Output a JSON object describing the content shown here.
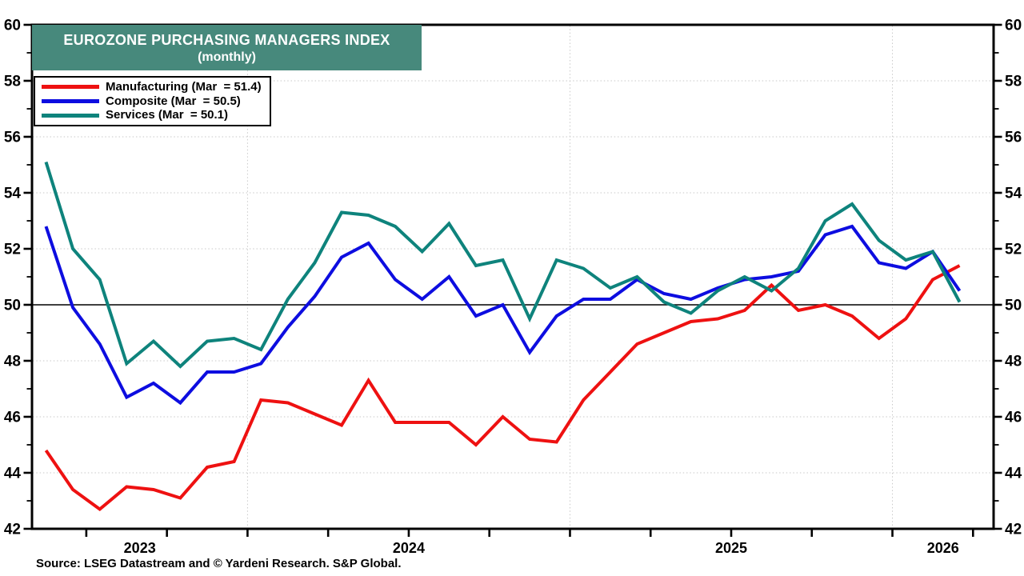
{
  "title": {
    "line1": "EUROZONE PURCHASING MANAGERS INDEX",
    "line2": "(monthly)"
  },
  "source_line": "Source: LSEG Datastream and © Yardeni Research. S&P Global.",
  "legend": [
    {
      "label": "Manufacturing (Mar  = 51.4)",
      "series": "Manufacturing",
      "color": "#ee1111"
    },
    {
      "label": "Composite (Mar  = 50.5)",
      "series": "Composite",
      "color": "#0d0de0"
    },
    {
      "label": "Services (Mar  = 50.1)",
      "series": "Services",
      "color": "#0e837c"
    }
  ],
  "colors": {
    "title_bg": "#47897c",
    "title_text": "#ffffff",
    "grid": "#c9c9c9",
    "axis": "#000000",
    "reference_line": "#000000"
  },
  "chart_data": {
    "type": "line",
    "title": "EUROZONE PURCHASING MANAGERS INDEX (monthly)",
    "xlabel": "",
    "ylabel": "",
    "ylim": [
      42,
      60
    ],
    "y_tick_labels": [
      42,
      44,
      46,
      48,
      50,
      52,
      54,
      56,
      58,
      60
    ],
    "y_gridlines": [
      44,
      46,
      48,
      52,
      54,
      56,
      58
    ],
    "reference_line": 50,
    "grid": "dotted",
    "legend_position": "top-left",
    "x_year_labels": [
      "2023",
      "2024",
      "2025",
      "2026"
    ],
    "x": [
      "May 2023",
      "Jun 2023",
      "Jul 2023",
      "Aug 2023",
      "Sep 2023",
      "Oct 2023",
      "Nov 2023",
      "Dec 2023",
      "Jan 2024",
      "Feb 2024",
      "Mar 2024",
      "Apr 2024",
      "May 2024",
      "Jun 2024",
      "Jul 2024",
      "Aug 2024",
      "Sep 2024",
      "Oct 2024",
      "Nov 2024",
      "Dec 2024",
      "Jan 2025",
      "Feb 2025",
      "Mar 2025",
      "Apr 2025",
      "May 2025",
      "Jun 2025",
      "Jul 2025",
      "Aug 2025",
      "Sep 2025",
      "Oct 2025",
      "Nov 2025",
      "Dec 2025",
      "Jan 2026",
      "Feb 2026",
      "Mar 2026"
    ],
    "series": [
      {
        "name": "Manufacturing",
        "color": "#ee1111",
        "values": [
          44.8,
          43.4,
          42.7,
          43.5,
          43.4,
          43.1,
          44.2,
          44.4,
          46.6,
          46.5,
          46.1,
          45.7,
          47.3,
          45.8,
          45.8,
          45.8,
          45.0,
          46.0,
          45.2,
          45.1,
          46.6,
          47.6,
          48.6,
          49.0,
          49.4,
          49.5,
          49.8,
          50.7,
          49.8,
          50.0,
          49.6,
          48.8,
          49.5,
          50.9,
          51.4
        ]
      },
      {
        "name": "Composite",
        "color": "#0d0de0",
        "values": [
          52.8,
          49.9,
          48.6,
          46.7,
          47.2,
          46.5,
          47.6,
          47.6,
          47.9,
          49.2,
          50.3,
          51.7,
          52.2,
          50.9,
          50.2,
          51.0,
          49.6,
          50.0,
          48.3,
          49.6,
          50.2,
          50.2,
          50.9,
          50.4,
          50.2,
          50.6,
          50.9,
          51.0,
          51.2,
          52.5,
          52.8,
          51.5,
          51.3,
          51.9,
          50.5
        ]
      },
      {
        "name": "Services",
        "color": "#0e837c",
        "values": [
          55.1,
          52.0,
          50.9,
          47.9,
          48.7,
          47.8,
          48.7,
          48.8,
          48.4,
          50.2,
          51.5,
          53.3,
          53.2,
          52.8,
          51.9,
          52.9,
          51.4,
          51.6,
          49.5,
          51.6,
          51.3,
          50.6,
          51.0,
          50.1,
          49.7,
          50.5,
          51.0,
          50.5,
          51.3,
          53.0,
          53.6,
          52.3,
          51.6,
          51.9,
          50.1
        ]
      }
    ]
  }
}
